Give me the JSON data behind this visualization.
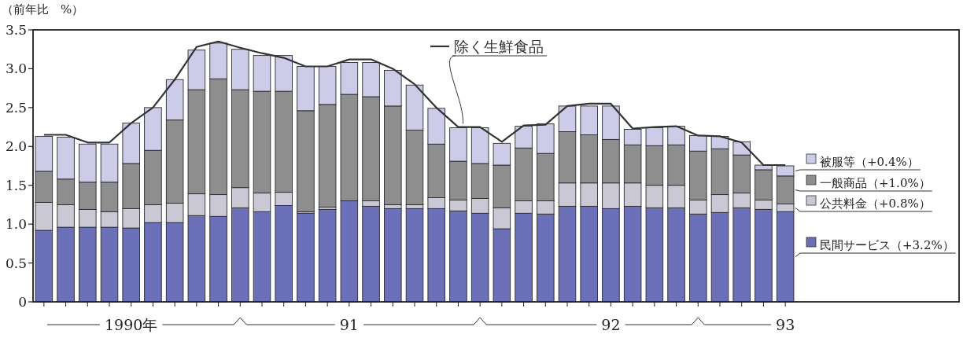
{
  "chart_data": {
    "type": "bar",
    "stacked": true,
    "ylabel": "（前年比　%）",
    "categories": [
      null,
      null,
      null,
      null,
      "1990年",
      null,
      null,
      null,
      null,
      null,
      null,
      null,
      null,
      null,
      "91",
      null,
      null,
      null,
      null,
      null,
      null,
      null,
      null,
      null,
      null,
      null,
      "92",
      null,
      null,
      null,
      null,
      null,
      null,
      null,
      "93"
    ],
    "ylim": [
      0,
      3.5
    ],
    "yticks": [
      0,
      0.5,
      {
        "value": 1,
        "label": "1.0"
      },
      1.5,
      {
        "value": 2,
        "label": "2.0"
      },
      2.5,
      {
        "value": 3,
        "label": "3.0"
      },
      3.5
    ],
    "legend": "right",
    "grid": false,
    "series": [
      {
        "name": "民間サービス（+3.2%）",
        "color": "#6b70b8",
        "values": [
          0.92,
          0.96,
          0.96,
          0.96,
          0.95,
          1.02,
          1.02,
          1.11,
          1.1,
          1.21,
          1.16,
          1.24,
          1.14,
          1.19,
          1.3,
          1.23,
          1.2,
          1.2,
          1.2,
          1.17,
          1.14,
          0.94,
          1.14,
          1.13,
          1.23,
          1.23,
          1.2,
          1.23,
          1.21,
          1.21,
          1.13,
          1.15,
          1.21,
          1.19,
          1.16
        ]
      },
      {
        "name": "公共料金（+0.8%）",
        "color": "#cbc8d6",
        "values": [
          0.36,
          0.29,
          0.23,
          0.2,
          0.25,
          0.23,
          0.25,
          0.28,
          0.28,
          0.26,
          0.24,
          0.17,
          0.02,
          0.03,
          0,
          0.07,
          0.05,
          0.05,
          0.14,
          0.14,
          0.19,
          0.27,
          0.16,
          0.17,
          0.3,
          0.3,
          0.33,
          0.3,
          0.29,
          0.29,
          0.18,
          0.23,
          0.19,
          0.12,
          0.1
        ]
      },
      {
        "name": "一般商品（+1.0%）",
        "color": "#8e8e8e",
        "values": [
          0.4,
          0.33,
          0.35,
          0.38,
          0.58,
          0.7,
          1.07,
          1.34,
          1.49,
          1.26,
          1.31,
          1.3,
          1.3,
          1.32,
          1.37,
          1.34,
          1.27,
          0.96,
          0.69,
          0.5,
          0.45,
          0.55,
          0.68,
          0.61,
          0.66,
          0.62,
          0.56,
          0.49,
          0.51,
          0.52,
          0.63,
          0.59,
          0.49,
          0.39,
          0.36
        ]
      },
      {
        "name": "被服等（+0.4%）",
        "color": "#cccce8",
        "values": [
          0.45,
          0.54,
          0.49,
          0.49,
          0.52,
          0.55,
          0.52,
          0.51,
          0.46,
          0.52,
          0.46,
          0.46,
          0.57,
          0.49,
          0.41,
          0.44,
          0.46,
          0.58,
          0.46,
          0.43,
          0.46,
          0.28,
          0.28,
          0.38,
          0.33,
          0.37,
          0.43,
          0.2,
          0.23,
          0.24,
          0.2,
          0.16,
          0.17,
          0.06,
          0.13
        ]
      },
      {
        "name": "除く生鮮食品",
        "type": "line",
        "color": "#333333",
        "values": [
          2.15,
          2.15,
          2.05,
          2.05,
          2.3,
          2.5,
          2.86,
          3.28,
          3.35,
          3.27,
          3.2,
          3.14,
          3.03,
          3.03,
          3.12,
          3.12,
          3.0,
          2.8,
          2.5,
          2.25,
          2.25,
          2.06,
          2.27,
          2.28,
          2.52,
          2.55,
          2.55,
          2.23,
          2.25,
          2.26,
          2.14,
          2.13,
          2.05,
          1.76,
          1.76
        ]
      }
    ]
  }
}
